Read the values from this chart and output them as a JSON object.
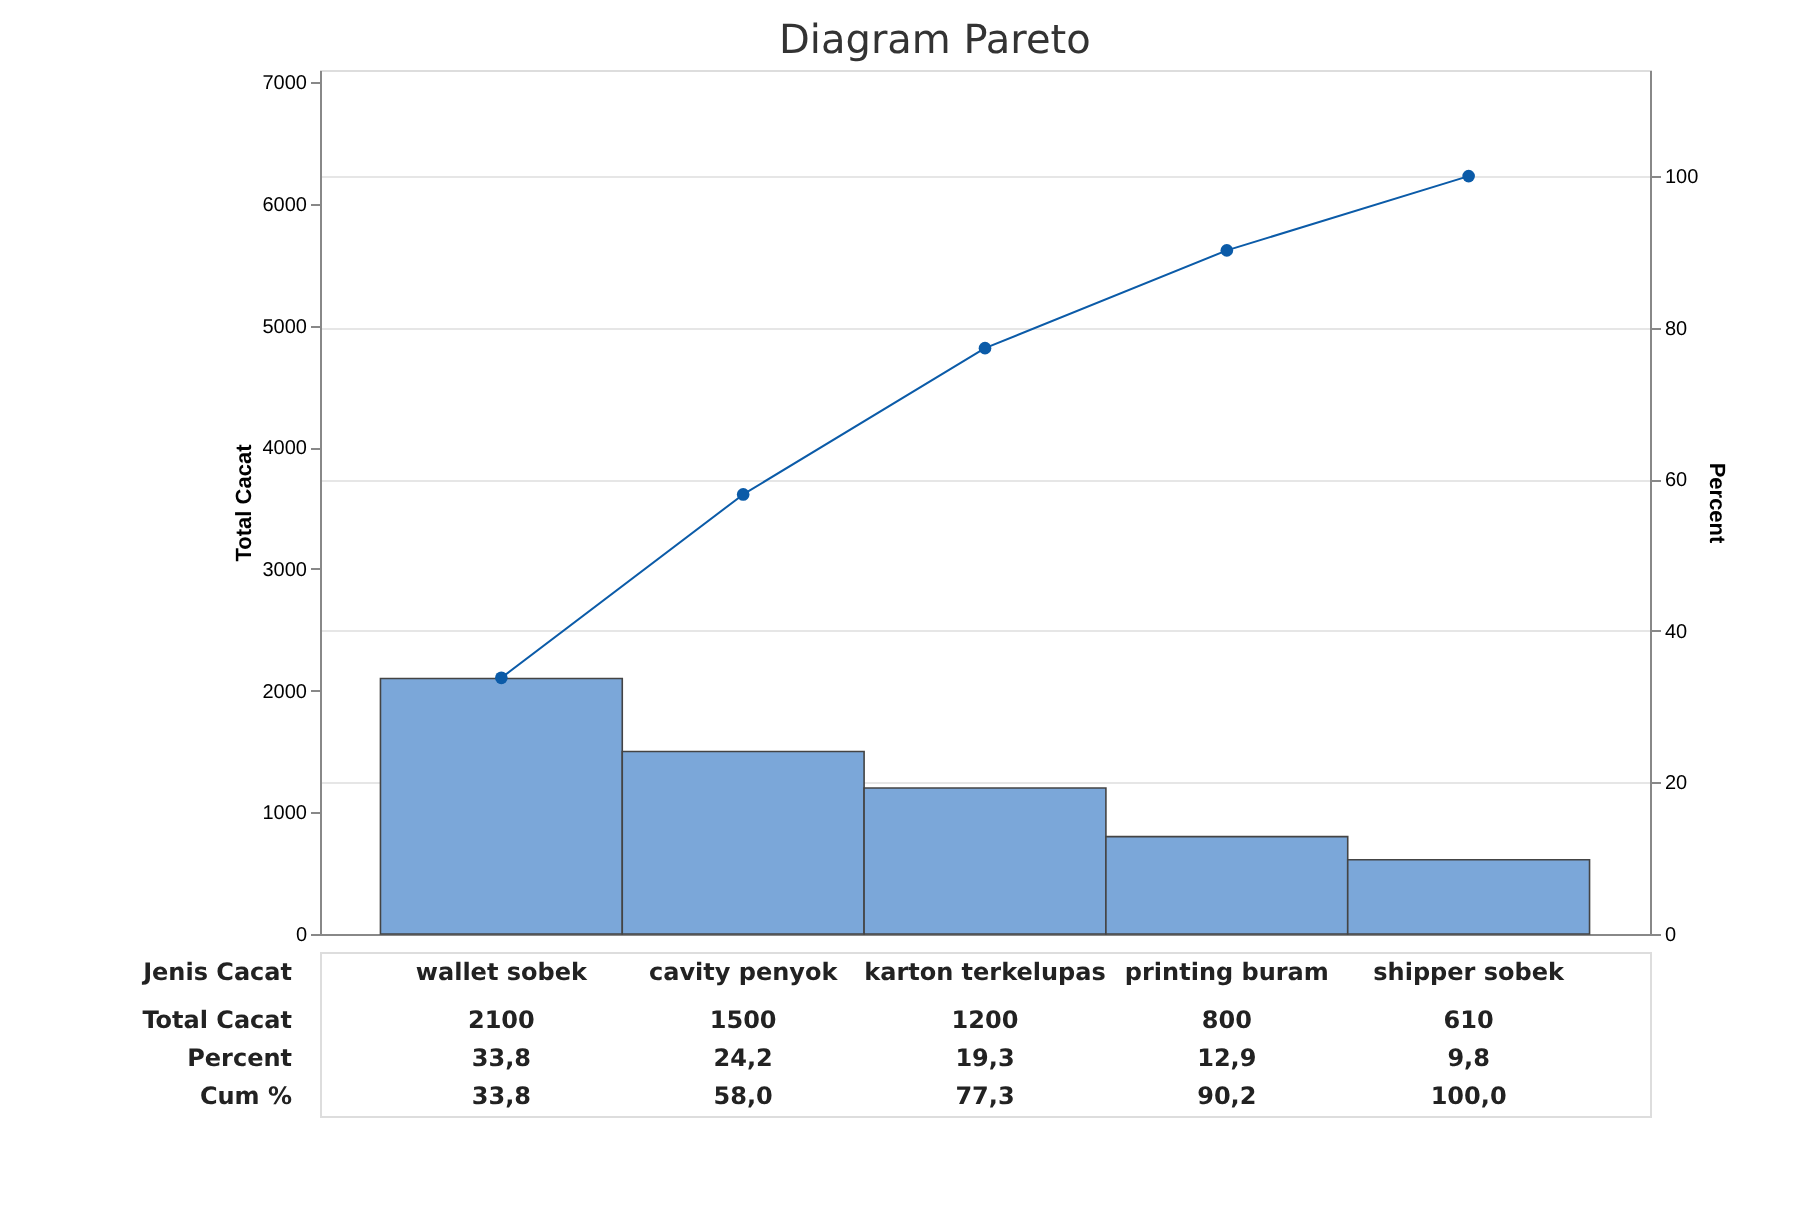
{
  "chart_data": {
    "type": "bar",
    "title": "Diagram Pareto",
    "ylabel": "Total Cacat",
    "y2label": "Percent",
    "categories": [
      "wallet sobek",
      "cavity penyok",
      "karton terkelupas",
      "printing buram",
      "shipper sobek"
    ],
    "series": [
      {
        "color": "#7ba7d9",
        "values": [
          2100,
          1500,
          1200,
          800,
          610
        ],
        "value_labels": [
          "2100",
          "1500",
          "1200",
          "800",
          "610"
        ]
      },
      {
        "type": "line",
        "axis": "y2",
        "color": "#0b5ba8",
        "marker": "circle",
        "values": [
          33.8,
          58.0,
          77.3,
          90.2,
          100.0
        ],
        "value_labels": [
          "33,8",
          "58,0",
          "77,3",
          "90,2",
          "100,0"
        ]
      }
    ],
    "ylim": [
      0,
      7100
    ],
    "yticks": [
      0,
      1000,
      2000,
      3000,
      4000,
      5000,
      6000,
      7000
    ],
    "y2lim": [
      0,
      114
    ],
    "y2ticks": [
      0,
      20,
      40,
      60,
      80,
      100
    ],
    "grid": true,
    "annotations": [
      "Jenis Cacat",
      "Total Cacat",
      "Percent",
      "Cum %",
      "33,8",
      "24,2",
      "19,3",
      "12,9",
      "9,8"
    ]
  }
}
